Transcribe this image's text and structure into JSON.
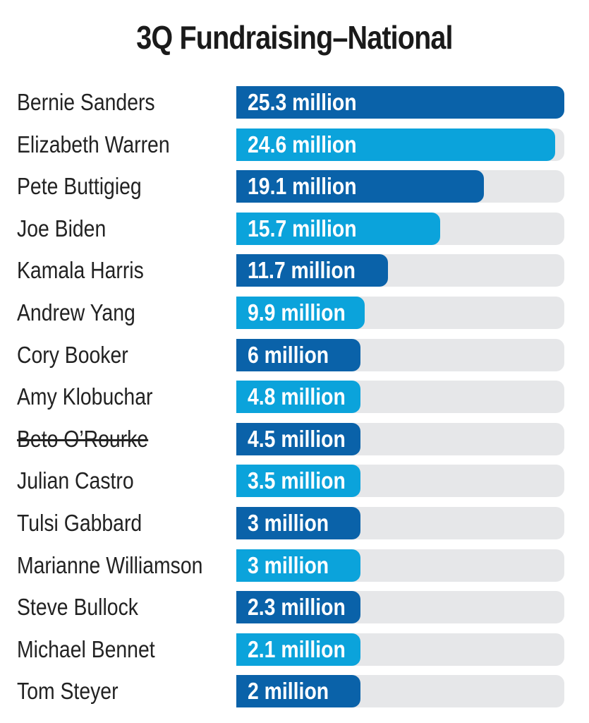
{
  "chart_data": {
    "type": "bar",
    "orientation": "horizontal",
    "title": "3Q Fundraising–National",
    "xlabel": "",
    "ylabel": "",
    "grid": false,
    "legend": "none",
    "xlim": [
      0,
      25.3
    ],
    "unit": "million",
    "categories": [
      "Bernie Sanders",
      "Elizabeth Warren",
      "Pete Buttigieg",
      "Joe Biden",
      "Kamala Harris",
      "Andrew Yang",
      "Cory Booker",
      "Amy Klobuchar",
      "Beto O’Rourke",
      "Julian Castro",
      "Tulsi Gabbard",
      "Marianne Williamson",
      "Steve Bullock",
      "Michael Bennet",
      "Tom Steyer"
    ],
    "values": [
      25.3,
      24.6,
      19.1,
      15.7,
      11.7,
      9.9,
      6,
      4.8,
      4.5,
      3.5,
      3,
      3,
      2.3,
      2.1,
      2
    ],
    "data_labels": [
      "25.3 million",
      "24.6 million",
      "19.1 million",
      "15.7 million",
      "11.7 million",
      "9.9 million",
      "6 million",
      "4.8 million",
      "4.5 million",
      "3.5 million",
      "3 million",
      "3 million",
      "2.3 million",
      "2.1 million",
      "2 million"
    ],
    "struck_through": [
      "Beto O’Rourke"
    ],
    "colors": {
      "dark": "#0a62a9",
      "light": "#0ba3db",
      "track": "#e6e7e9"
    }
  }
}
